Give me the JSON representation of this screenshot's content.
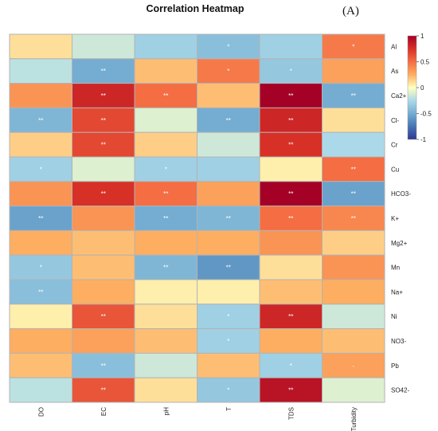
{
  "title": "Correlation Heatmap",
  "panel_label": "(A)",
  "chart_data": {
    "type": "heatmap",
    "title": "Correlation Heatmap",
    "x_labels": [
      "DO",
      "EC",
      "pH",
      "T",
      "TDS",
      "Turbidity"
    ],
    "y_labels": [
      "Al",
      "As",
      "Ca2+",
      "Cl-",
      "Cr",
      "Cu",
      "HCO3-",
      "K+",
      "Mg2+",
      "Mn",
      "Na+",
      "Ni",
      "NO3-",
      "Pb",
      "SO42-"
    ],
    "values": [
      [
        0.1,
        -0.15,
        -0.3,
        -0.4,
        -0.3,
        0.45
      ],
      [
        -0.2,
        -0.5,
        0.2,
        0.45,
        -0.35,
        0.3
      ],
      [
        0.35,
        0.8,
        0.5,
        0.2,
        1.0,
        -0.5
      ],
      [
        -0.45,
        0.65,
        -0.1,
        -0.5,
        0.8,
        0.1
      ],
      [
        0.15,
        0.65,
        0.15,
        -0.15,
        0.75,
        -0.25
      ],
      [
        -0.3,
        -0.1,
        -0.3,
        -0.3,
        0.05,
        0.5
      ],
      [
        0.35,
        0.75,
        0.5,
        0.3,
        1.0,
        -0.55
      ],
      [
        -0.55,
        0.35,
        -0.5,
        -0.45,
        0.5,
        0.4
      ],
      [
        0.25,
        0.2,
        0.25,
        0.25,
        0.35,
        0.15
      ],
      [
        -0.35,
        0.2,
        -0.45,
        -0.6,
        0.1,
        0.35
      ],
      [
        -0.4,
        0.25,
        0.05,
        0.05,
        0.2,
        0.25
      ],
      [
        0.05,
        0.6,
        0.1,
        -0.3,
        0.8,
        -0.15
      ],
      [
        0.25,
        0.3,
        0.2,
        -0.3,
        0.25,
        0.2
      ],
      [
        0.2,
        -0.4,
        -0.15,
        0.2,
        -0.3,
        0.3
      ],
      [
        -0.2,
        0.6,
        0.1,
        -0.35,
        0.9,
        -0.1
      ]
    ],
    "annotations": [
      [
        "",
        "",
        "",
        "*",
        "",
        "*"
      ],
      [
        "",
        "**",
        "",
        "*",
        "*",
        ""
      ],
      [
        "",
        "**",
        "**",
        "",
        "**",
        "**"
      ],
      [
        "**",
        "**",
        "",
        "**",
        "**",
        ""
      ],
      [
        "",
        "**",
        "",
        "",
        "**",
        ""
      ],
      [
        "*",
        "",
        "*",
        "",
        "",
        "**"
      ],
      [
        "",
        "**",
        "**",
        "",
        "**",
        "**"
      ],
      [
        "**",
        "",
        "**",
        "**",
        "**",
        "**"
      ],
      [
        "",
        "",
        "",
        "",
        "",
        ""
      ],
      [
        "*",
        "",
        "**",
        "**",
        "",
        ""
      ],
      [
        "**",
        "",
        "",
        "",
        "",
        ""
      ],
      [
        "",
        "**",
        "",
        "*",
        "**",
        ""
      ],
      [
        "",
        "",
        "",
        "*",
        "",
        ""
      ],
      [
        "",
        "**",
        "",
        "",
        "*",
        "-"
      ],
      [
        "",
        "**",
        "",
        "*",
        "**",
        ""
      ]
    ],
    "colorbar": {
      "range": [
        -1,
        1
      ],
      "tick_values": [
        1,
        0.5,
        0,
        -0.5,
        -1
      ],
      "tick_labels": [
        "1",
        "0.5",
        "0",
        "-0.5",
        "-1"
      ],
      "palette": "RdYlBu reversed (blue = negative, red = positive)"
    },
    "colors": {
      "neg_strong": "#313695",
      "neg_mid": "#74add1",
      "neg_light": "#abd9e9",
      "neutral": "#ffffbf",
      "pos_light": "#fdae61",
      "pos_mid": "#f46d43",
      "pos_strong": "#a50026"
    }
  }
}
